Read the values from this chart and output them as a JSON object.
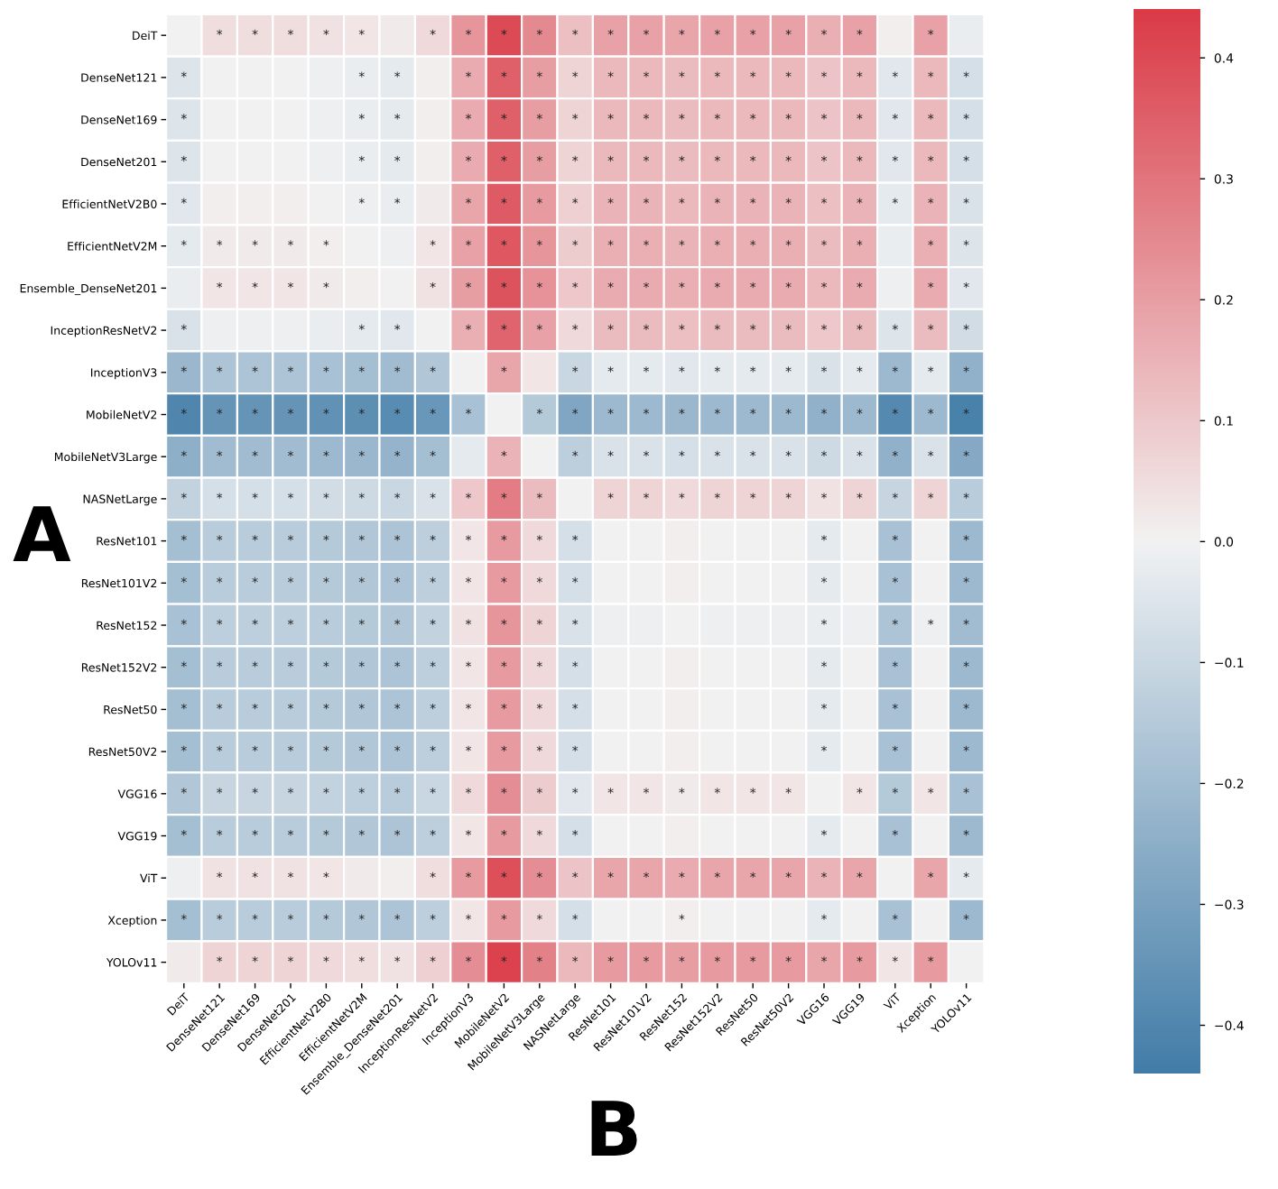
{
  "chart_data": {
    "type": "heatmap",
    "categories": [
      "DeiT",
      "DenseNet121",
      "DenseNet169",
      "DenseNet201",
      "EfficientNetV2B0",
      "EfficientNetV2M",
      "Ensemble_DenseNet201",
      "InceptionResNetV2",
      "InceptionV3",
      "MobileNetV2",
      "MobileNetV3Large",
      "NASNetLarge",
      "ResNet101",
      "ResNet101V2",
      "ResNet152",
      "ResNet152V2",
      "ResNet50",
      "ResNet50V2",
      "VGG16",
      "VGG19",
      "ViT",
      "Xception",
      "YOLOv11"
    ],
    "y_categories": [
      "DeiT",
      "DenseNet121",
      "DenseNet169",
      "DenseNet201",
      "EfficientNetV2B0",
      "EfficientNetV2M",
      "Ensemble_DenseNet201",
      "InceptionResNetV2",
      "InceptionV3",
      "MobileNetV2",
      "MobileNetV3Large",
      "NASNetLarge",
      "ResNet101",
      "ResNet101V2",
      "ResNet152",
      "ResNet152V2",
      "ResNet50",
      "ResNet50V2",
      "VGG16",
      "VGG19",
      "ViT",
      "Xception",
      "YOLOv11"
    ],
    "cells": [
      [
        0,
        0.05,
        0.05,
        0.05,
        0.04,
        0.03,
        0.02,
        0.06,
        0.22,
        0.4,
        0.25,
        0.12,
        0.19,
        0.19,
        0.18,
        0.19,
        0.19,
        0.19,
        0.16,
        0.19,
        0.01,
        0.19,
        -0.02
      ],
      [
        -0.05,
        0,
        0,
        0,
        -0.01,
        -0.02,
        -0.03,
        0.01,
        0.17,
        0.35,
        0.2,
        0.07,
        0.14,
        0.14,
        0.13,
        0.14,
        0.14,
        0.14,
        0.11,
        0.14,
        -0.04,
        0.14,
        -0.07
      ],
      [
        -0.05,
        0,
        0,
        0,
        -0.01,
        -0.02,
        -0.03,
        0.01,
        0.17,
        0.35,
        0.2,
        0.07,
        0.14,
        0.14,
        0.13,
        0.14,
        0.14,
        0.14,
        0.11,
        0.14,
        -0.04,
        0.14,
        -0.07
      ],
      [
        -0.05,
        0,
        0,
        0,
        -0.01,
        -0.02,
        -0.03,
        0.01,
        0.17,
        0.35,
        0.2,
        0.07,
        0.14,
        0.14,
        0.13,
        0.14,
        0.14,
        0.14,
        0.11,
        0.14,
        -0.04,
        0.14,
        -0.07
      ],
      [
        -0.04,
        0.01,
        0.01,
        0.01,
        0,
        -0.01,
        -0.02,
        0.02,
        0.18,
        0.36,
        0.21,
        0.08,
        0.15,
        0.15,
        0.14,
        0.15,
        0.15,
        0.15,
        0.12,
        0.15,
        -0.03,
        0.15,
        -0.06
      ],
      [
        -0.03,
        0.02,
        0.02,
        0.02,
        0.01,
        0,
        -0.01,
        0.03,
        0.19,
        0.37,
        0.22,
        0.09,
        0.16,
        0.16,
        0.15,
        0.16,
        0.16,
        0.16,
        0.13,
        0.16,
        -0.02,
        0.16,
        -0.05
      ],
      [
        -0.02,
        0.03,
        0.03,
        0.03,
        0.02,
        0.01,
        0,
        0.04,
        0.2,
        0.38,
        0.23,
        0.1,
        0.17,
        0.17,
        0.16,
        0.17,
        0.17,
        0.17,
        0.14,
        0.17,
        -0.01,
        0.17,
        -0.04
      ],
      [
        -0.06,
        -0.01,
        -0.01,
        -0.01,
        -0.02,
        -0.03,
        -0.04,
        0,
        0.16,
        0.34,
        0.19,
        0.06,
        0.13,
        0.13,
        0.12,
        0.13,
        0.13,
        0.13,
        0.1,
        0.13,
        -0.05,
        0.13,
        -0.08
      ],
      [
        -0.22,
        -0.17,
        -0.17,
        -0.17,
        -0.18,
        -0.19,
        -0.2,
        -0.16,
        0,
        0.18,
        0.03,
        -0.1,
        -0.03,
        -0.03,
        -0.04,
        -0.03,
        -0.03,
        -0.03,
        -0.06,
        -0.03,
        -0.21,
        -0.03,
        -0.24
      ],
      [
        -0.4,
        -0.35,
        -0.35,
        -0.35,
        -0.36,
        -0.37,
        -0.38,
        -0.34,
        -0.18,
        0,
        -0.15,
        -0.28,
        -0.21,
        -0.21,
        -0.22,
        -0.21,
        -0.21,
        -0.21,
        -0.24,
        -0.21,
        -0.39,
        -0.21,
        -0.42
      ],
      [
        -0.25,
        -0.2,
        -0.2,
        -0.2,
        -0.21,
        -0.22,
        -0.23,
        -0.19,
        -0.03,
        0.15,
        0,
        -0.13,
        -0.06,
        -0.06,
        -0.07,
        -0.06,
        -0.06,
        -0.06,
        -0.09,
        -0.06,
        -0.24,
        -0.06,
        -0.27
      ],
      [
        -0.12,
        -0.07,
        -0.07,
        -0.07,
        -0.08,
        -0.09,
        -0.1,
        -0.06,
        0.1,
        0.28,
        0.13,
        0,
        0.07,
        0.07,
        0.06,
        0.07,
        0.07,
        0.07,
        0.04,
        0.07,
        -0.11,
        0.07,
        -0.14
      ],
      [
        -0.19,
        -0.14,
        -0.14,
        -0.14,
        -0.15,
        -0.16,
        -0.17,
        -0.13,
        0.03,
        0.21,
        0.06,
        -0.07,
        0,
        0,
        0.01,
        0,
        0,
        0,
        -0.03,
        0,
        -0.18,
        0,
        -0.21
      ],
      [
        -0.19,
        -0.14,
        -0.14,
        -0.14,
        -0.15,
        -0.16,
        -0.17,
        -0.13,
        0.03,
        0.21,
        0.06,
        -0.07,
        0,
        0,
        0.01,
        0,
        0,
        0,
        -0.03,
        0,
        -0.18,
        0,
        -0.21
      ],
      [
        -0.18,
        -0.13,
        -0.13,
        -0.13,
        -0.14,
        -0.15,
        -0.16,
        -0.12,
        0.04,
        0.22,
        0.07,
        -0.06,
        -0.01,
        -0.01,
        0,
        -0.01,
        -0.01,
        -0.01,
        -0.02,
        -0.01,
        -0.17,
        -0.01,
        -0.2
      ],
      [
        -0.19,
        -0.14,
        -0.14,
        -0.14,
        -0.15,
        -0.16,
        -0.17,
        -0.13,
        0.03,
        0.21,
        0.06,
        -0.07,
        0,
        0,
        0.01,
        0,
        0,
        0,
        -0.03,
        0,
        -0.18,
        0,
        -0.21
      ],
      [
        -0.19,
        -0.14,
        -0.14,
        -0.14,
        -0.15,
        -0.16,
        -0.17,
        -0.13,
        0.03,
        0.21,
        0.06,
        -0.07,
        0,
        0,
        0.01,
        0,
        0,
        0,
        -0.03,
        0,
        -0.18,
        0,
        -0.21
      ],
      [
        -0.19,
        -0.14,
        -0.14,
        -0.14,
        -0.15,
        -0.16,
        -0.17,
        -0.13,
        0.03,
        0.21,
        0.06,
        -0.07,
        0,
        0,
        0.01,
        0,
        0,
        0,
        -0.03,
        0,
        -0.18,
        0,
        -0.21
      ],
      [
        -0.16,
        -0.11,
        -0.11,
        -0.11,
        -0.12,
        -0.13,
        -0.14,
        -0.1,
        0.06,
        0.24,
        0.09,
        -0.04,
        0.03,
        0.03,
        0.02,
        0.03,
        0.03,
        0.03,
        0,
        0.03,
        -0.15,
        0.03,
        -0.18
      ],
      [
        -0.19,
        -0.14,
        -0.14,
        -0.14,
        -0.15,
        -0.16,
        -0.17,
        -0.13,
        0.03,
        0.21,
        0.06,
        -0.07,
        0,
        0,
        0.01,
        0,
        0,
        0,
        -0.03,
        0,
        -0.18,
        0,
        -0.21
      ],
      [
        -0.01,
        0.04,
        0.04,
        0.04,
        0.03,
        0.02,
        0.01,
        0.05,
        0.21,
        0.39,
        0.24,
        0.11,
        0.18,
        0.18,
        0.17,
        0.18,
        0.18,
        0.18,
        0.15,
        0.18,
        0,
        0.18,
        -0.03
      ],
      [
        -0.19,
        -0.14,
        -0.14,
        -0.14,
        -0.15,
        -0.16,
        -0.17,
        -0.13,
        0.03,
        0.21,
        0.06,
        -0.07,
        0,
        0,
        0.01,
        0,
        0,
        0,
        -0.03,
        0,
        -0.18,
        0,
        -0.21
      ],
      [
        0.02,
        0.07,
        0.07,
        0.07,
        0.06,
        0.05,
        0.04,
        0.08,
        0.24,
        0.42,
        0.27,
        0.14,
        0.21,
        0.21,
        0.2,
        0.21,
        0.21,
        0.21,
        0.18,
        0.21,
        0.03,
        0.21,
        0
      ]
    ],
    "cell_labels": [
      [
        null,
        "*",
        "*",
        "*",
        "*",
        "*",
        null,
        "*",
        "*",
        "*",
        "*",
        "*",
        "*",
        "*",
        "*",
        "*",
        "*",
        "*",
        "*",
        "*",
        null,
        "*",
        null
      ],
      [
        "*",
        null,
        null,
        null,
        null,
        "*",
        "*",
        null,
        "*",
        "*",
        "*",
        "*",
        "*",
        "*",
        "*",
        "*",
        "*",
        "*",
        "*",
        "*",
        "*",
        "*",
        "*"
      ],
      [
        "*",
        null,
        null,
        null,
        null,
        "*",
        "*",
        null,
        "*",
        "*",
        "*",
        "*",
        "*",
        "*",
        "*",
        "*",
        "*",
        "*",
        "*",
        "*",
        "*",
        "*",
        "*"
      ],
      [
        "*",
        null,
        null,
        null,
        null,
        "*",
        "*",
        null,
        "*",
        "*",
        "*",
        "*",
        "*",
        "*",
        "*",
        "*",
        "*",
        "*",
        "*",
        "*",
        "*",
        "*",
        "*"
      ],
      [
        "*",
        null,
        null,
        null,
        null,
        "*",
        "*",
        null,
        "*",
        "*",
        "*",
        "*",
        "*",
        "*",
        "*",
        "*",
        "*",
        "*",
        "*",
        "*",
        "*",
        "*",
        "*"
      ],
      [
        "*",
        "*",
        "*",
        "*",
        "*",
        null,
        null,
        "*",
        "*",
        "*",
        "*",
        "*",
        "*",
        "*",
        "*",
        "*",
        "*",
        "*",
        "*",
        "*",
        null,
        "*",
        "*"
      ],
      [
        null,
        "*",
        "*",
        "*",
        "*",
        null,
        null,
        "*",
        "*",
        "*",
        "*",
        "*",
        "*",
        "*",
        "*",
        "*",
        "*",
        "*",
        "*",
        "*",
        null,
        "*",
        "*"
      ],
      [
        "*",
        null,
        null,
        null,
        null,
        "*",
        "*",
        null,
        "*",
        "*",
        "*",
        "*",
        "*",
        "*",
        "*",
        "*",
        "*",
        "*",
        "*",
        "*",
        "*",
        "*",
        "*"
      ],
      [
        "*",
        "*",
        "*",
        "*",
        "*",
        "*",
        "*",
        "*",
        null,
        "*",
        null,
        "*",
        "*",
        "*",
        "*",
        "*",
        "*",
        "*",
        "*",
        "*",
        "*",
        "*",
        "*"
      ],
      [
        "*",
        "*",
        "*",
        "*",
        "*",
        "*",
        "*",
        "*",
        "*",
        null,
        "*",
        "*",
        "*",
        "*",
        "*",
        "*",
        "*",
        "*",
        "*",
        "*",
        "*",
        "*",
        "*"
      ],
      [
        "*",
        "*",
        "*",
        "*",
        "*",
        "*",
        "*",
        "*",
        null,
        "*",
        null,
        "*",
        "*",
        "*",
        "*",
        "*",
        "*",
        "*",
        "*",
        "*",
        "*",
        "*",
        "*"
      ],
      [
        "*",
        "*",
        "*",
        "*",
        "*",
        "*",
        "*",
        "*",
        "*",
        "*",
        "*",
        null,
        "*",
        "*",
        "*",
        "*",
        "*",
        "*",
        "*",
        "*",
        "*",
        "*",
        "*"
      ],
      [
        "*",
        "*",
        "*",
        "*",
        "*",
        "*",
        "*",
        "*",
        "*",
        "*",
        "*",
        "*",
        null,
        null,
        null,
        null,
        null,
        null,
        "*",
        null,
        "*",
        null,
        "*"
      ],
      [
        "*",
        "*",
        "*",
        "*",
        "*",
        "*",
        "*",
        "*",
        "*",
        "*",
        "*",
        "*",
        null,
        null,
        null,
        null,
        null,
        null,
        "*",
        null,
        "*",
        null,
        "*"
      ],
      [
        "*",
        "*",
        "*",
        "*",
        "*",
        "*",
        "*",
        "*",
        "*",
        "*",
        "*",
        "*",
        null,
        null,
        null,
        null,
        null,
        null,
        "*",
        null,
        "*",
        "*",
        "*"
      ],
      [
        "*",
        "*",
        "*",
        "*",
        "*",
        "*",
        "*",
        "*",
        "*",
        "*",
        "*",
        "*",
        null,
        null,
        null,
        null,
        null,
        null,
        "*",
        null,
        "*",
        null,
        "*"
      ],
      [
        "*",
        "*",
        "*",
        "*",
        "*",
        "*",
        "*",
        "*",
        "*",
        "*",
        "*",
        "*",
        null,
        null,
        null,
        null,
        null,
        null,
        "*",
        null,
        "*",
        null,
        "*"
      ],
      [
        "*",
        "*",
        "*",
        "*",
        "*",
        "*",
        "*",
        "*",
        "*",
        "*",
        "*",
        "*",
        null,
        null,
        null,
        null,
        null,
        null,
        "*",
        null,
        "*",
        null,
        "*"
      ],
      [
        "*",
        "*",
        "*",
        "*",
        "*",
        "*",
        "*",
        "*",
        "*",
        "*",
        "*",
        "*",
        "*",
        "*",
        "*",
        "*",
        "*",
        "*",
        null,
        "*",
        "*",
        "*",
        "*"
      ],
      [
        "*",
        "*",
        "*",
        "*",
        "*",
        "*",
        "*",
        "*",
        "*",
        "*",
        "*",
        "*",
        null,
        null,
        null,
        null,
        null,
        null,
        "*",
        null,
        "*",
        null,
        "*"
      ],
      [
        null,
        "*",
        "*",
        "*",
        "*",
        null,
        null,
        "*",
        "*",
        "*",
        "*",
        "*",
        "*",
        "*",
        "*",
        "*",
        "*",
        "*",
        "*",
        "*",
        null,
        "*",
        "*"
      ],
      [
        "*",
        "*",
        "*",
        "*",
        "*",
        "*",
        "*",
        "*",
        "*",
        "*",
        "*",
        "*",
        null,
        null,
        "*",
        null,
        null,
        null,
        "*",
        null,
        "*",
        null,
        "*"
      ],
      [
        null,
        "*",
        "*",
        "*",
        "*",
        "*",
        "*",
        "*",
        "*",
        "*",
        "*",
        "*",
        "*",
        "*",
        "*",
        "*",
        "*",
        "*",
        "*",
        "*",
        "*",
        "*",
        null
      ]
    ],
    "clim": [
      -0.44,
      0.44
    ],
    "cticks": [
      {
        "value": -0.4,
        "label": "−0.4"
      },
      {
        "value": -0.3,
        "label": "−0.3"
      },
      {
        "value": -0.2,
        "label": "−0.2"
      },
      {
        "value": -0.1,
        "label": "−0.1"
      },
      {
        "value": 0,
        "label": "0.0"
      },
      0.1,
      0.2,
      0.3,
      0.4
    ],
    "annotations": [
      "A",
      "B"
    ]
  }
}
